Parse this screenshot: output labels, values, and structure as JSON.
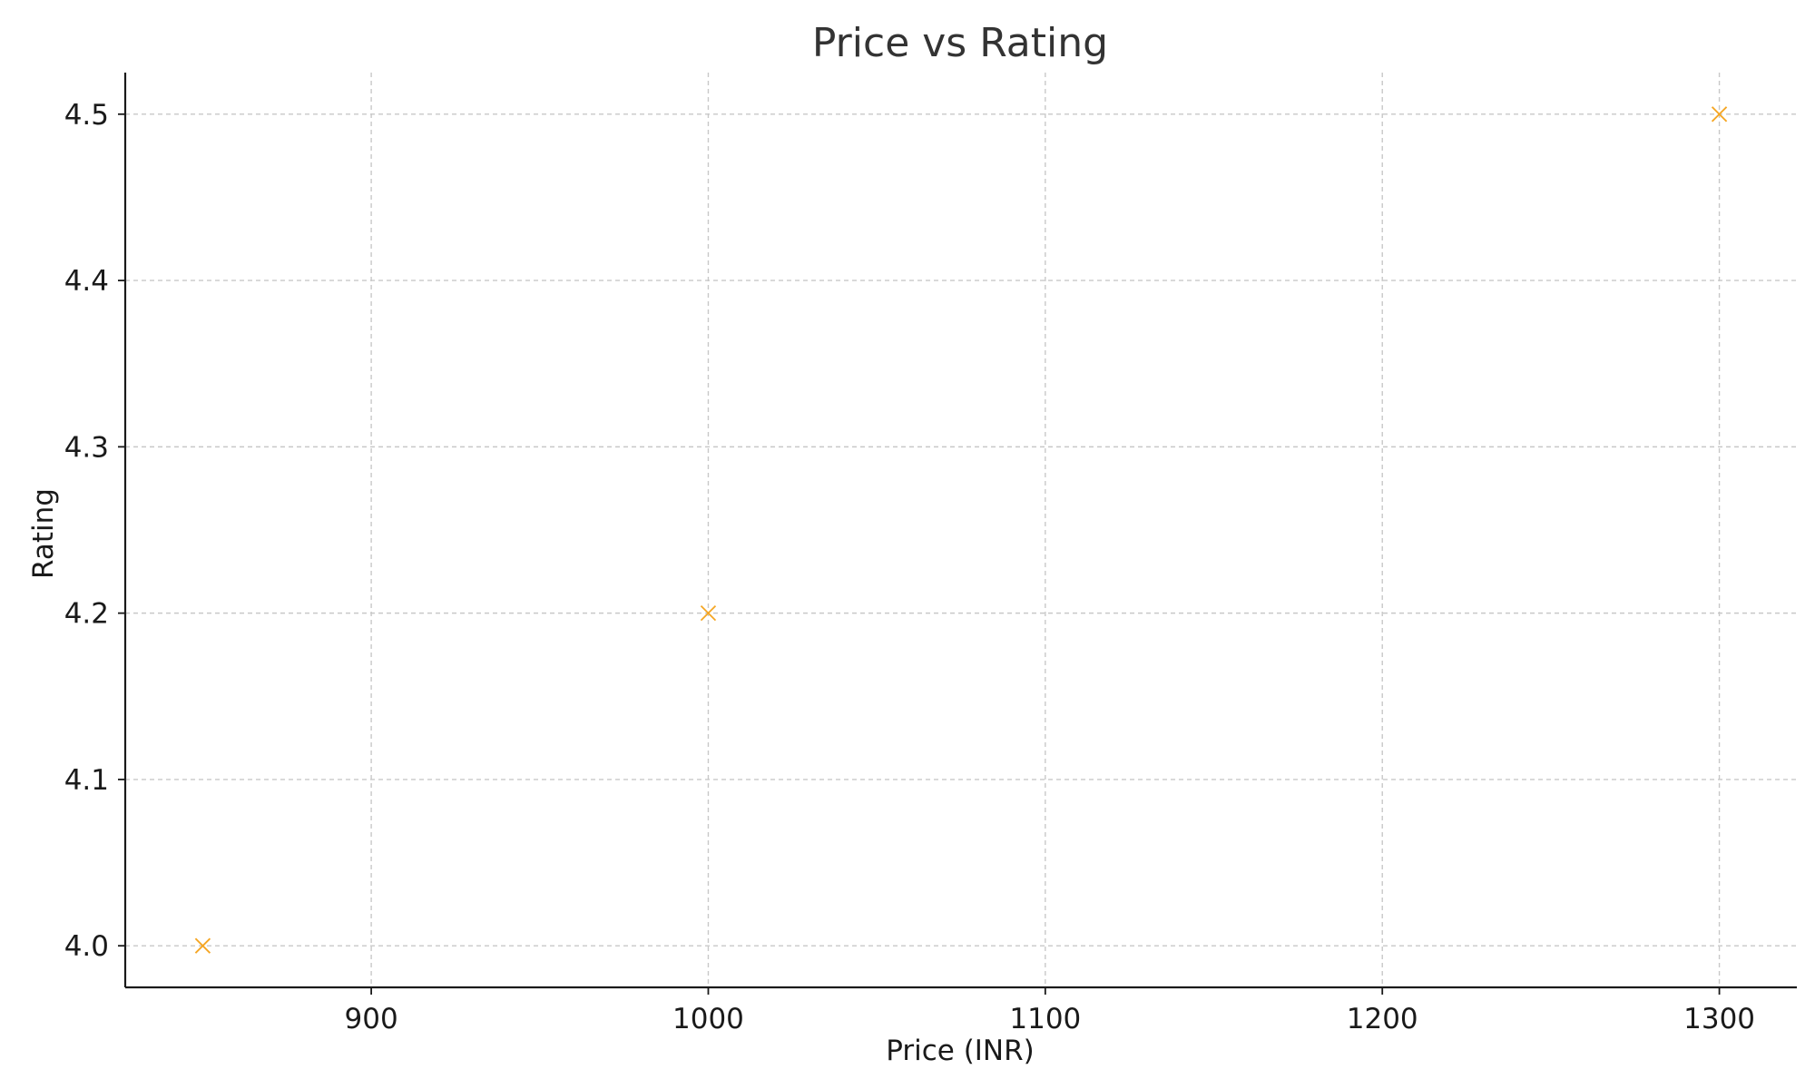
{
  "chart_data": {
    "type": "scatter",
    "title": "Price vs Rating",
    "xlabel": "Price (INR)",
    "ylabel": "Rating",
    "xlim": [
      827,
      1323
    ],
    "ylim": [
      3.975,
      4.525
    ],
    "x_ticks": [
      900,
      1000,
      1100,
      1200,
      1300
    ],
    "y_ticks": [
      4.0,
      4.1,
      4.2,
      4.3,
      4.4,
      4.5
    ],
    "grid": true,
    "marker": "x",
    "series": [
      {
        "color": "#f5a623",
        "points": [
          {
            "x": 850,
            "y": 4.0
          },
          {
            "x": 1000,
            "y": 4.2
          },
          {
            "x": 1300,
            "y": 4.5
          }
        ]
      }
    ]
  }
}
